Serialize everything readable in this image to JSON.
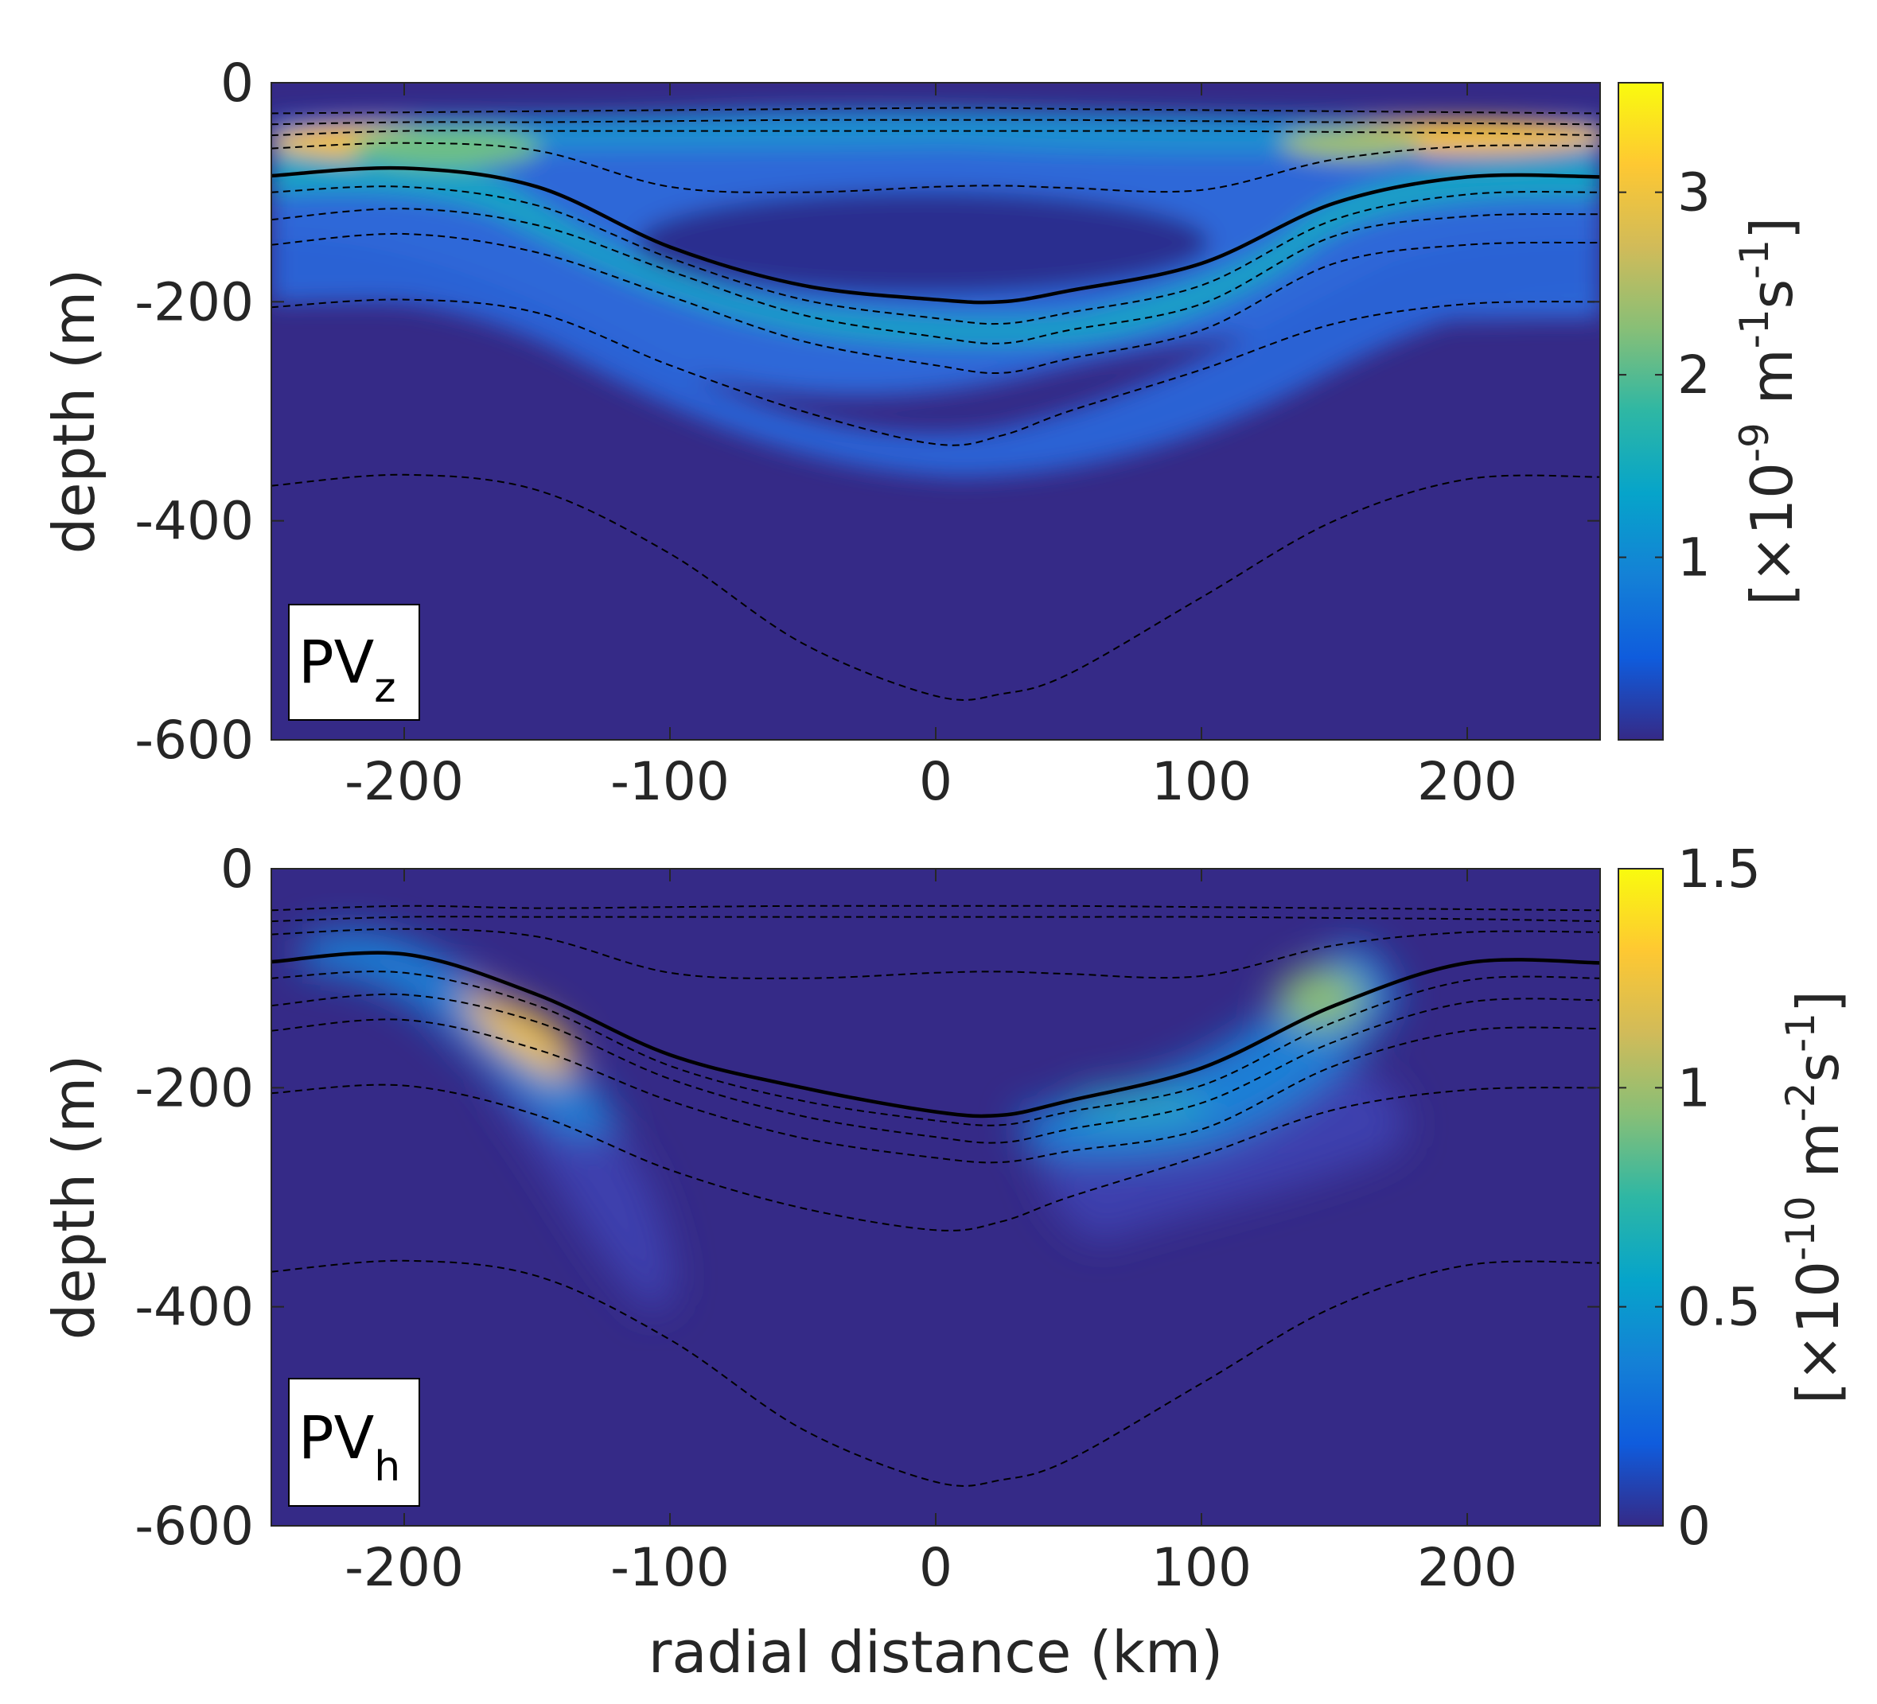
{
  "figure": {
    "xlabel": "radial distance (km)"
  },
  "chart_data": [
    {
      "type": "heatmap",
      "panel_label": {
        "main": "PV",
        "sub": "z"
      },
      "title": "",
      "xlabel": "radial distance (km)",
      "ylabel": "depth (m)",
      "xlim": [
        -250,
        250
      ],
      "ylim": [
        -600,
        0
      ],
      "x_ticks": [
        -200,
        -100,
        0,
        100,
        200
      ],
      "y_ticks": [
        0,
        -200,
        -400,
        -600
      ],
      "x_tick_labels": [
        "-200",
        "-100",
        "0",
        "100",
        "200"
      ],
      "y_tick_labels": [
        "0",
        "-200",
        "-400",
        "-600"
      ],
      "colorbar": {
        "label_parts": [
          "[×10",
          "-9",
          " m",
          "-1",
          "s",
          "-1",
          "]"
        ],
        "lim": [
          0,
          3.6
        ],
        "ticks": [
          1,
          2,
          3
        ],
        "tick_labels": [
          "1",
          "2",
          "3"
        ],
        "colormap": [
          "#352a87",
          "#0f5cdd",
          "#1481d6",
          "#06a4ca",
          "#2eb7a4",
          "#87bf77",
          "#d1bb59",
          "#fec832",
          "#f9fb0e"
        ]
      },
      "isopycnals_x": [
        -250,
        -200,
        -150,
        -100,
        -50,
        0,
        25,
        50,
        100,
        150,
        200,
        250
      ],
      "isopycnals": [
        {
          "style": "dashed",
          "depth": [
            -28,
            -27,
            -26,
            -25,
            -24,
            -23,
            -23,
            -24,
            -25,
            -26,
            -27,
            -28
          ]
        },
        {
          "style": "dashed",
          "depth": [
            -38,
            -36,
            -36,
            -35,
            -34,
            -34,
            -34,
            -34,
            -35,
            -36,
            -37,
            -38
          ]
        },
        {
          "style": "dashed",
          "depth": [
            -48,
            -44,
            -44,
            -44,
            -44,
            -44,
            -44,
            -44,
            -44,
            -45,
            -46,
            -48
          ]
        },
        {
          "style": "dashed",
          "depth": [
            -60,
            -55,
            -62,
            -95,
            -100,
            -95,
            -94,
            -96,
            -98,
            -70,
            -58,
            -58
          ]
        },
        {
          "style": "solid",
          "depth": [
            -85,
            -78,
            -95,
            -150,
            -185,
            -198,
            -200,
            -190,
            -165,
            -110,
            -86,
            -86
          ]
        },
        {
          "style": "dashed",
          "depth": [
            -100,
            -95,
            -112,
            -160,
            -198,
            -215,
            -220,
            -210,
            -185,
            -125,
            -102,
            -100
          ]
        },
        {
          "style": "dashed",
          "depth": [
            -125,
            -115,
            -130,
            -172,
            -212,
            -232,
            -238,
            -226,
            -202,
            -140,
            -122,
            -120
          ]
        },
        {
          "style": "dashed",
          "depth": [
            -148,
            -138,
            -155,
            -195,
            -236,
            -258,
            -265,
            -252,
            -226,
            -165,
            -148,
            -146
          ]
        },
        {
          "style": "dashed",
          "depth": [
            -205,
            -198,
            -210,
            -258,
            -300,
            -330,
            -322,
            -300,
            -262,
            -220,
            -202,
            -200
          ]
        },
        {
          "style": "dashed",
          "depth": [
            -368,
            -358,
            -372,
            -430,
            -512,
            -560,
            -558,
            -540,
            -470,
            -400,
            -362,
            -360
          ]
        }
      ]
    },
    {
      "type": "heatmap",
      "panel_label": {
        "main": "PV",
        "sub": "h"
      },
      "title": "",
      "xlabel": "radial distance (km)",
      "ylabel": "depth (m)",
      "xlim": [
        -250,
        250
      ],
      "ylim": [
        -600,
        0
      ],
      "x_ticks": [
        -200,
        -100,
        0,
        100,
        200
      ],
      "y_ticks": [
        0,
        -200,
        -400,
        -600
      ],
      "x_tick_labels": [
        "-200",
        "-100",
        "0",
        "100",
        "200"
      ],
      "y_tick_labels": [
        "0",
        "-200",
        "-400",
        "-600"
      ],
      "colorbar": {
        "label_parts": [
          "[×10",
          "-10",
          " m",
          "-2",
          "s",
          "-1",
          "]"
        ],
        "lim": [
          0,
          1.5
        ],
        "ticks": [
          0,
          0.5,
          1,
          1.5
        ],
        "tick_labels": [
          "0",
          "0.5",
          "1",
          "1.5"
        ],
        "colormap": [
          "#352a87",
          "#0f5cdd",
          "#1481d6",
          "#06a4ca",
          "#2eb7a4",
          "#87bf77",
          "#d1bb59",
          "#fec832",
          "#f9fb0e"
        ]
      },
      "isopycnals_x": [
        -250,
        -200,
        -150,
        -100,
        -50,
        0,
        25,
        50,
        100,
        150,
        200,
        250
      ],
      "isopycnals": [
        {
          "style": "dashed",
          "depth": [
            -38,
            -34,
            -36,
            -35,
            -34,
            -34,
            -34,
            -34,
            -35,
            -36,
            -37,
            -38
          ]
        },
        {
          "style": "dashed",
          "depth": [
            -48,
            -44,
            -44,
            -44,
            -44,
            -44,
            -44,
            -44,
            -44,
            -45,
            -46,
            -48
          ]
        },
        {
          "style": "dashed",
          "depth": [
            -60,
            -55,
            -62,
            -95,
            -100,
            -95,
            -94,
            -96,
            -98,
            -70,
            -58,
            -58
          ]
        },
        {
          "style": "solid",
          "depth": [
            -85,
            -78,
            -115,
            -170,
            -200,
            -222,
            -225,
            -212,
            -182,
            -125,
            -86,
            -86
          ]
        },
        {
          "style": "dashed",
          "depth": [
            -100,
            -95,
            -125,
            -180,
            -212,
            -230,
            -234,
            -222,
            -198,
            -140,
            -102,
            -100
          ]
        },
        {
          "style": "dashed",
          "depth": [
            -125,
            -115,
            -140,
            -192,
            -226,
            -245,
            -250,
            -238,
            -214,
            -158,
            -122,
            -120
          ]
        },
        {
          "style": "dashed",
          "depth": [
            -148,
            -138,
            -165,
            -212,
            -246,
            -264,
            -268,
            -258,
            -238,
            -180,
            -148,
            -146
          ]
        },
        {
          "style": "dashed",
          "depth": [
            -205,
            -198,
            -225,
            -275,
            -310,
            -330,
            -322,
            -300,
            -262,
            -220,
            -202,
            -200
          ]
        },
        {
          "style": "dashed",
          "depth": [
            -368,
            -358,
            -372,
            -430,
            -512,
            -560,
            -558,
            -540,
            -470,
            -400,
            -362,
            -360
          ]
        }
      ]
    }
  ]
}
